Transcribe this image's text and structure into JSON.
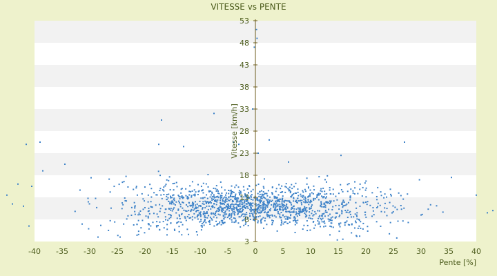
{
  "chart_data": {
    "type": "scatter",
    "title": "VITESSE vs PENTE",
    "xlabel": "Pente [%]",
    "ylabel": "Vitesse [km/h]",
    "xlim": [
      -40,
      40
    ],
    "ylim": [
      3,
      53
    ],
    "x_ticks": [
      -40,
      -35,
      -30,
      -25,
      -20,
      -15,
      -10,
      -5,
      0,
      5,
      10,
      15,
      20,
      25,
      30,
      35,
      40
    ],
    "y_ticks": [
      3,
      8,
      13,
      18,
      23,
      28,
      33,
      38,
      43,
      48,
      53
    ],
    "y_ticks_top_bottom": [
      53,
      48,
      43,
      38,
      33,
      28,
      23,
      18,
      13,
      8,
      3
    ],
    "grid": false,
    "banded_background": true,
    "colors": {
      "background": "#eef2cc",
      "point": "#3d82c8",
      "axis": "#6b5a1a",
      "text": "#4a5a1a"
    },
    "outliers": [
      {
        "x": -45,
        "y": 13.5
      },
      {
        "x": -44,
        "y": 11.5
      },
      {
        "x": -43,
        "y": 16
      },
      {
        "x": -42,
        "y": 11
      },
      {
        "x": -41.5,
        "y": 25
      },
      {
        "x": -41,
        "y": 6.5
      },
      {
        "x": -40.5,
        "y": 15.5
      },
      {
        "x": -39,
        "y": 25.5
      },
      {
        "x": -38.5,
        "y": 19
      },
      {
        "x": -34.5,
        "y": 20.5
      },
      {
        "x": -28.5,
        "y": 4
      },
      {
        "x": -24.5,
        "y": 4
      },
      {
        "x": -17,
        "y": 30.5
      },
      {
        "x": -17.5,
        "y": 25
      },
      {
        "x": -16,
        "y": 4.5
      },
      {
        "x": -13,
        "y": 24.5
      },
      {
        "x": -10.5,
        "y": 4.5
      },
      {
        "x": -7.5,
        "y": 32
      },
      {
        "x": -4,
        "y": 25.5
      },
      {
        "x": -3,
        "y": 25
      },
      {
        "x": -0.5,
        "y": 33
      },
      {
        "x": -0.2,
        "y": 47
      },
      {
        "x": 0.2,
        "y": 51
      },
      {
        "x": 0.3,
        "y": 49
      },
      {
        "x": 0.5,
        "y": 23
      },
      {
        "x": 2.5,
        "y": 26
      },
      {
        "x": 1.5,
        "y": 6
      },
      {
        "x": 6,
        "y": 21
      },
      {
        "x": 13.5,
        "y": 4.5
      },
      {
        "x": 15.5,
        "y": 22.5
      },
      {
        "x": 27,
        "y": 25.5
      },
      {
        "x": 30,
        "y": 9
      },
      {
        "x": 35.5,
        "y": 17.5
      },
      {
        "x": 40,
        "y": 13.5
      },
      {
        "x": 42,
        "y": 9.5
      },
      {
        "x": 43,
        "y": 10
      },
      {
        "x": 44,
        "y": 11
      }
    ]
  }
}
